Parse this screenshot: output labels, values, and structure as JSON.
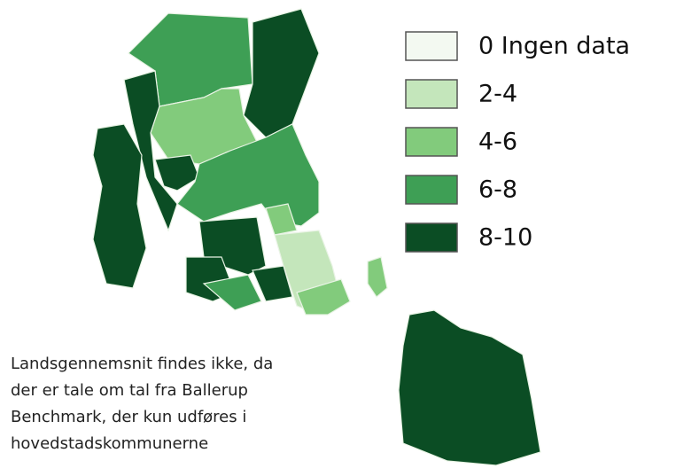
{
  "legend": {
    "items": [
      {
        "label": "0 Ingen data",
        "color": "#f3f9f1"
      },
      {
        "label": "2-4",
        "color": "#c4e6bb"
      },
      {
        "label": "4-6",
        "color": "#82cb7c"
      },
      {
        "label": "6-8",
        "color": "#3e9f55"
      },
      {
        "label": "8-10",
        "color": "#0b4d24"
      }
    ]
  },
  "note": {
    "lines": [
      "Landsgennemsnit findes ikke, da",
      "der er tale om tal fra Ballerup",
      "Benchmark, der kun udføres i",
      "hovedstadskommunerne"
    ]
  }
}
